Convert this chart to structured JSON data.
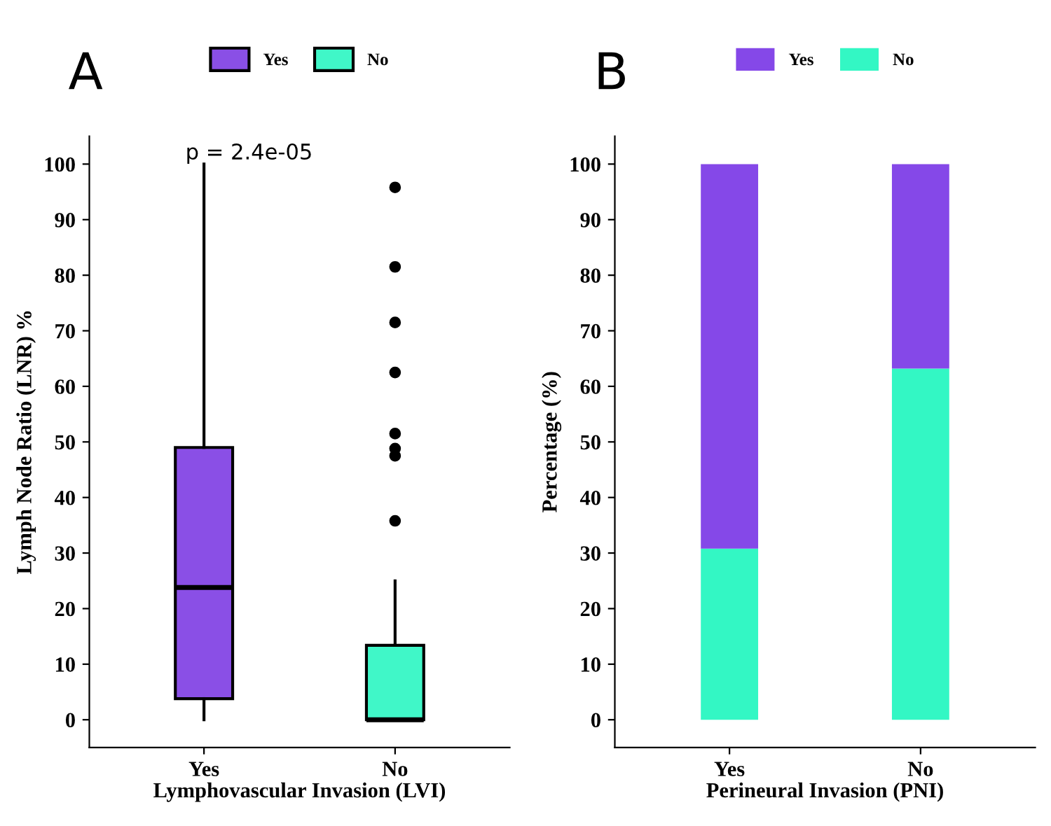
{
  "chart_data": [
    {
      "type": "box",
      "title": "A",
      "xlabel": "Lymphovascular Invasion (LVI)",
      "ylabel": "Lymph Node Ratio (LNR) %",
      "categories": [
        "Yes",
        "No"
      ],
      "series": [
        {
          "name": "Yes",
          "color": "#8a4fe6",
          "boxes": [
            {
              "low": 0,
              "q1": 3.8,
              "median": 23.8,
              "q3": 49,
              "high": 100
            },
            null
          ]
        },
        {
          "name": "No",
          "color": "#40f7c8",
          "boxes": [
            null,
            {
              "low": 0,
              "q1": 0,
              "median": 0,
              "q3": 13.4,
              "high": 25,
              "outliers": [
                95.8,
                81.5,
                71.5,
                62.5,
                51.5,
                48.8,
                47.5,
                35.8
              ]
            }
          ]
        }
      ],
      "annotations": [
        "p = 2.4e-05"
      ],
      "ylim": [
        -5,
        105
      ],
      "yticks": [
        0,
        10,
        20,
        30,
        40,
        50,
        60,
        70,
        80,
        90,
        100
      ],
      "grid": false,
      "legend": "top"
    },
    {
      "type": "bar",
      "title": "B",
      "xlabel": "Perineural Invasion (PNI)",
      "ylabel": "Percentage (%)",
      "categories": [
        "Yes",
        "No"
      ],
      "stacked": true,
      "series": [
        {
          "name": "No",
          "color": "#33f7c4",
          "values": [
            30.8,
            63.2
          ]
        },
        {
          "name": "Yes",
          "color": "#8548e8",
          "values": [
            69.2,
            36.8
          ]
        }
      ],
      "ylim": [
        -5,
        105
      ],
      "yticks": [
        0,
        10,
        20,
        30,
        40,
        50,
        60,
        70,
        80,
        90,
        100
      ],
      "grid": false,
      "legend": "top"
    }
  ]
}
